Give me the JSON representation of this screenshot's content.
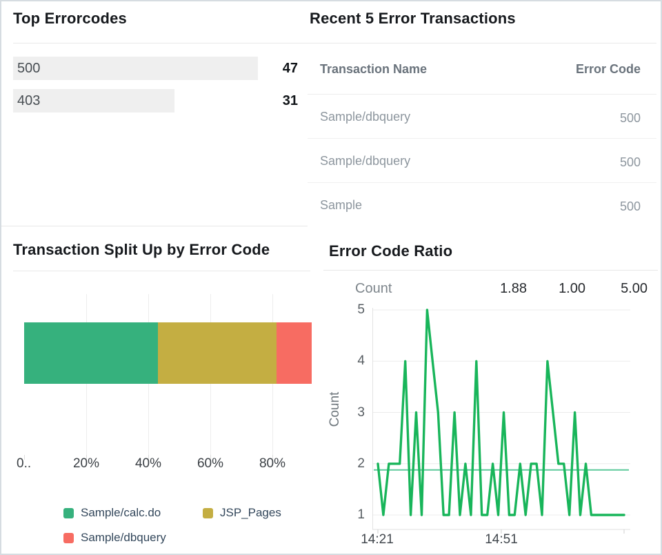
{
  "top_errorcodes": {
    "title": "Top Errorcodes",
    "bar_bg_color": "#efefef",
    "rows": [
      {
        "label": "500",
        "value": "47"
      },
      {
        "label": "403",
        "value": "31"
      }
    ]
  },
  "recent_transactions": {
    "title": "Recent 5 Error Transactions",
    "columns": {
      "name": "Transaction Name",
      "code": "Error Code"
    },
    "rows": [
      {
        "name": "Sample/dbquery",
        "code": "500"
      },
      {
        "name": "Sample/dbquery",
        "code": "500"
      },
      {
        "name": "Sample",
        "code": "500"
      }
    ]
  },
  "split_panel": {
    "title": "Transaction Split Up by Error Code"
  },
  "ratio_panel": {
    "title": "Error Code Ratio",
    "stats": {
      "label": "Count",
      "avg": "1.88",
      "min": "1.00",
      "max": "5.00"
    }
  },
  "chart_data": [
    {
      "id": "transaction-split",
      "type": "bar",
      "variant": "horizontal-stacked",
      "title": "Transaction Split Up by Error Code",
      "xlim": [
        0,
        96.5
      ],
      "grid": true,
      "x_ticks": [
        {
          "label": "0..",
          "value": 0
        },
        {
          "label": "20%",
          "value": 20
        },
        {
          "label": "40%",
          "value": 40
        },
        {
          "label": "60%",
          "value": 60
        },
        {
          "label": "80%",
          "value": 80
        }
      ],
      "series": [
        {
          "name": "Sample/calc.do",
          "value_pct": 43.1,
          "color": "#36b17d"
        },
        {
          "name": "JSP_Pages",
          "value_pct": 38.2,
          "color": "#c4ae42"
        },
        {
          "name": "Sample/dbquery",
          "value_pct": 11.4,
          "color": "#f76c62"
        }
      ],
      "legend_position": "bottom"
    },
    {
      "id": "error-code-ratio",
      "type": "line",
      "title": "Error Code Ratio",
      "ylabel": "Count",
      "ylim": [
        1,
        5
      ],
      "y_ticks": [
        5,
        4,
        3,
        2,
        1
      ],
      "grid": true,
      "x_ticks": [
        {
          "label": "14:21",
          "pos": 0.0
        },
        {
          "label": "14:51",
          "pos": 0.501
        },
        {
          "label": "",
          "pos": 1.0
        }
      ],
      "x_start": "14:21",
      "average": 1.88,
      "min": 1.0,
      "max": 5.0,
      "line_color": "#18b55a",
      "average_line_color": "#5bc99a",
      "values": [
        2,
        1,
        2,
        2,
        2,
        4,
        1,
        3,
        1,
        5,
        4,
        3,
        1,
        1,
        3,
        1,
        2,
        1,
        4,
        1,
        1,
        2,
        1,
        3,
        1,
        1,
        2,
        1,
        2,
        2,
        1,
        4,
        3,
        2,
        2,
        1,
        3,
        1,
        2,
        1,
        1,
        1,
        1,
        1,
        1,
        1
      ]
    }
  ]
}
